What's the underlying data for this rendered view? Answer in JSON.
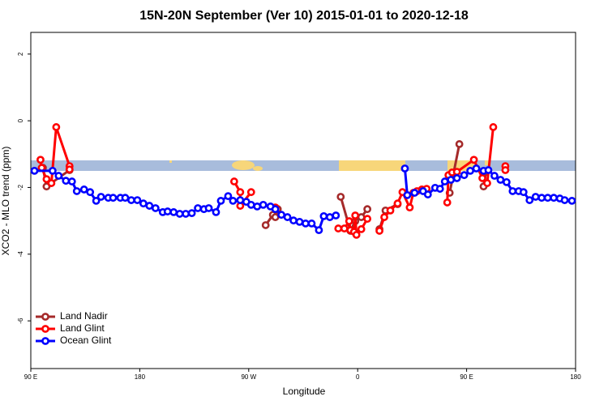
{
  "chart_data": {
    "type": "line",
    "title": "15N-20N September (Ver 10)   2015-01-01 to 2020-12-18",
    "x_label": "Longitude",
    "y_label": "XCO2 - MLO trend (ppm)",
    "xlim": [
      90,
      540
    ],
    "ylim": [
      -7.43,
      2.65
    ],
    "xticks": [
      {
        "value": 90,
        "label": "90 E"
      },
      180,
      {
        "value": 270,
        "label": "90 W"
      },
      {
        "value": 360,
        "label": "0"
      },
      {
        "value": 450,
        "label": "90 E"
      },
      {
        "value": 540,
        "label": "180"
      }
    ],
    "yticks": [
      -6,
      -4,
      -2,
      0,
      2
    ],
    "legend": "bottom-left",
    "series": [
      {
        "name": "Land Nadir",
        "color": "#a52a2a",
        "x": [
          100,
          103,
          122,
          null,
          284,
          290,
          292,
          294,
          null,
          346,
          354,
          358,
          363,
          368,
          null,
          378,
          383,
          393,
          null,
          436,
          444,
          null,
          464,
          466
        ],
        "values": [
          -1.41,
          -1.97,
          -1.48,
          null,
          -3.13,
          -2.82,
          -2.89,
          -2.65,
          null,
          -2.28,
          -3.3,
          -3.01,
          -2.89,
          -2.65,
          null,
          -3.25,
          -2.69,
          -2.5,
          null,
          -2.16,
          -0.7,
          null,
          -1.97,
          -1.53
        ]
      },
      {
        "name": "Land Glint",
        "color": "#ff0000",
        "x": [
          98,
          99,
          103,
          107,
          111,
          122,
          122,
          null,
          258,
          263,
          263,
          272,
          null,
          292,
          null,
          344,
          349,
          353,
          354,
          357,
          358,
          359,
          363,
          368,
          null,
          378,
          382,
          387,
          393,
          397,
          403,
          406,
          409,
          413,
          417,
          null,
          434,
          435,
          438,
          442,
          456,
          463,
          467,
          472,
          null,
          482,
          482
        ],
        "values": [
          -1.17,
          -1.41,
          -1.75,
          -1.87,
          -0.19,
          -1.36,
          -1.46,
          null,
          -1.82,
          -2.14,
          -2.55,
          -2.14,
          null,
          -2.6,
          null,
          -3.23,
          -3.23,
          -3.01,
          -3.28,
          -3.33,
          -2.84,
          -3.42,
          -3.25,
          -2.94,
          null,
          -3.3,
          -2.89,
          -2.69,
          -2.48,
          -2.14,
          -2.6,
          -2.16,
          -2.11,
          -2.06,
          -2.04,
          null,
          -2.45,
          -1.63,
          -1.55,
          -1.53,
          -1.17,
          -1.72,
          -1.87,
          -0.19,
          null,
          -1.36,
          -1.48
        ]
      },
      {
        "name": "Ocean Glint",
        "color": "#0000ff",
        "x": [
          93,
          108,
          113,
          119,
          124,
          128,
          134,
          139,
          144,
          148,
          154,
          158,
          164,
          168,
          173,
          178,
          183,
          188,
          193,
          199,
          203,
          208,
          213,
          218,
          223,
          228,
          233,
          237,
          243,
          247,
          253,
          257,
          263,
          268,
          272,
          277,
          282,
          288,
          292,
          297,
          302,
          307,
          312,
          317,
          322,
          328,
          332,
          337,
          342,
          null,
          399,
          401,
          407,
          414,
          418,
          424,
          428,
          432,
          437,
          442,
          448,
          453,
          458,
          464,
          468,
          473,
          478,
          483,
          488,
          493,
          497,
          502,
          507,
          512,
          517,
          522,
          527,
          531,
          537
        ],
        "values": [
          -1.5,
          -1.5,
          -1.65,
          -1.8,
          -1.82,
          -2.11,
          -2.06,
          -2.14,
          -2.4,
          -2.28,
          -2.31,
          -2.31,
          -2.31,
          -2.31,
          -2.38,
          -2.38,
          -2.48,
          -2.55,
          -2.62,
          -2.74,
          -2.72,
          -2.74,
          -2.79,
          -2.79,
          -2.77,
          -2.62,
          -2.65,
          -2.62,
          -2.74,
          -2.4,
          -2.26,
          -2.4,
          -2.38,
          -2.43,
          -2.52,
          -2.57,
          -2.52,
          -2.57,
          -2.65,
          -2.82,
          -2.89,
          -2.99,
          -3.03,
          -3.08,
          -3.08,
          -3.28,
          -2.86,
          -2.89,
          -2.84,
          null,
          -1.43,
          -2.23,
          -2.16,
          -2.11,
          -2.21,
          -2.01,
          -2.04,
          -1.82,
          -1.77,
          -1.72,
          -1.63,
          -1.5,
          -1.43,
          -1.5,
          -1.48,
          -1.65,
          -1.77,
          -1.84,
          -2.11,
          -2.11,
          -2.14,
          -2.38,
          -2.28,
          -2.31,
          -2.31,
          -2.31,
          -2.33,
          -2.38,
          -2.4
        ]
      }
    ]
  }
}
